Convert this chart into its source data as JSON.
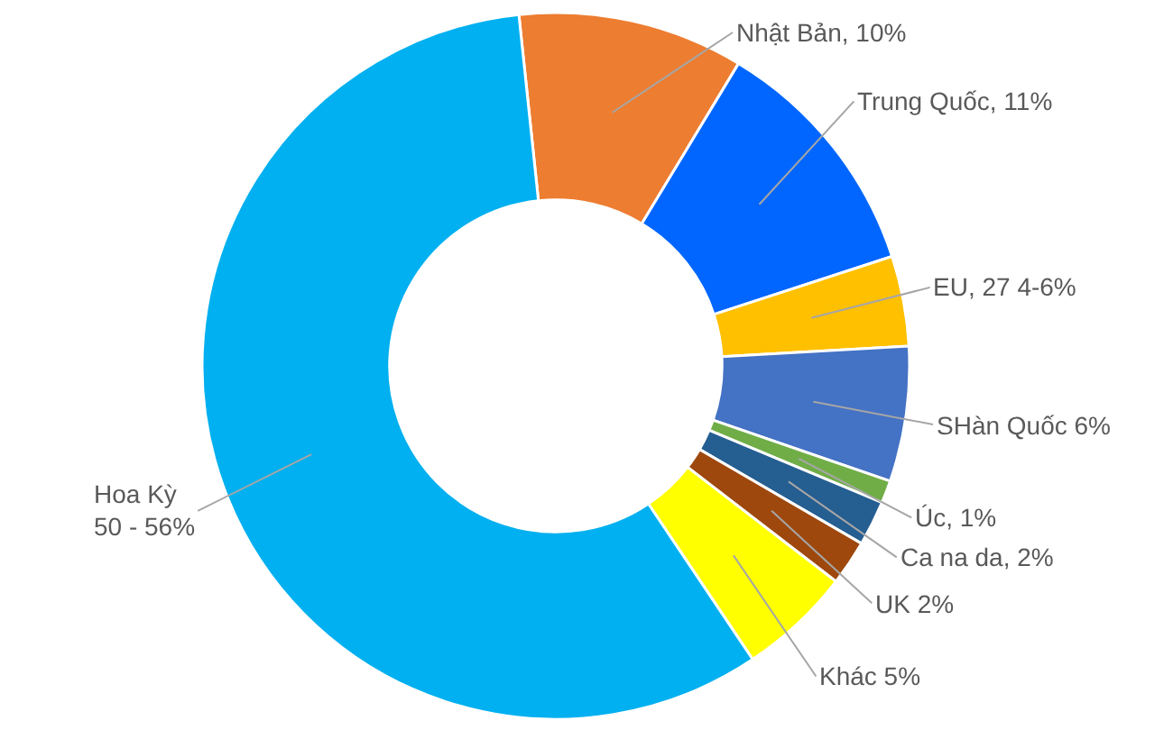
{
  "chart_data": {
    "type": "donut",
    "categories": [
      "Nhật Bản, 10%",
      "Trung Quốc, 11%",
      "EU, 27 4-6%",
      "SHàn Quốc 6%",
      "Úc, 1%",
      "Ca na da, 2%",
      "UK 2%",
      "Khác 5%",
      "Hoa Kỳ\n50 - 56%"
    ],
    "values": [
      10,
      11,
      4,
      6,
      1,
      2,
      2,
      5,
      56
    ],
    "colors": [
      "#ed7d31",
      "#0066ff",
      "#ffc000",
      "#4472c4",
      "#70ad47",
      "#255e91",
      "#9e480e",
      "#ffff00",
      "#00b0f0"
    ]
  }
}
